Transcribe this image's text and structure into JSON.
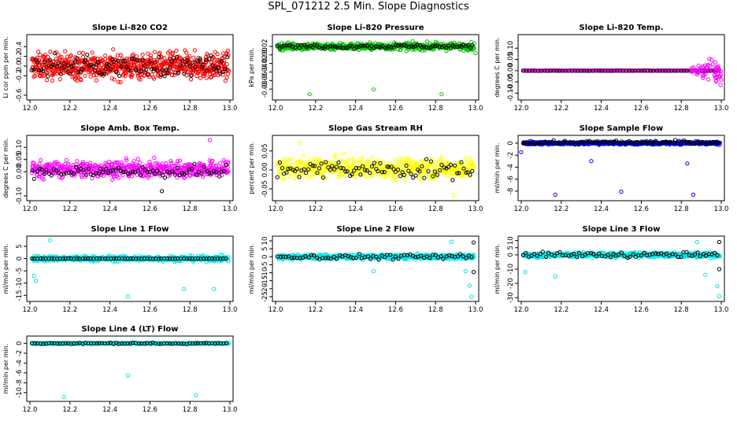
{
  "page": {
    "title": "SPL_071212  2.5 Min. Slope Diagnostics"
  },
  "chart_data": [
    {
      "type": "scatter",
      "title": "Slope Li-820 CO2",
      "ylabel": "Li cor ppm per min.",
      "xlim": [
        12.0,
        13.0
      ],
      "ylim": [
        -0.65,
        0.6
      ],
      "xticks": [
        "12.0",
        "12.2",
        "12.4",
        "12.6",
        "12.8",
        "13.0"
      ],
      "yticks": [
        {
          "v": -0.6,
          "l": "-0.6"
        },
        {
          "v": -0.2,
          "l": "-0.2"
        },
        {
          "v": 0.0,
          "l": "0.0"
        },
        {
          "v": 0.2,
          "l": "0.2"
        },
        {
          "v": 0.4,
          "l": "0.4"
        }
      ],
      "series": [
        {
          "name": "primary",
          "color": "#ff0000",
          "n": 700,
          "center": 0.0,
          "spread": 0.22,
          "outliers": []
        },
        {
          "name": "reference",
          "color": "#000000",
          "n": 110,
          "center": 0.0,
          "spread": 0.18,
          "outliers": []
        }
      ]
    },
    {
      "type": "scatter",
      "title": "Slope Li-820 Pressure",
      "ylabel": "kPa per min.",
      "xlim": [
        12.0,
        13.0
      ],
      "ylim": [
        -0.1,
        0.042
      ],
      "xticks": [
        "12.0",
        "12.2",
        "12.4",
        "12.6",
        "12.8",
        "13.0"
      ],
      "yticks": [
        {
          "v": -0.08,
          "l": "-0.08"
        },
        {
          "v": -0.06,
          "l": "-0.06"
        },
        {
          "v": -0.04,
          "l": "-0.04"
        },
        {
          "v": -0.02,
          "l": "-0.02"
        },
        {
          "v": 0.0,
          "l": "0.00"
        },
        {
          "v": 0.02,
          "l": "0.02"
        }
      ],
      "series": [
        {
          "name": "primary",
          "color": "#00c000",
          "n": 520,
          "center": 0.02,
          "spread": 0.007,
          "outliers": [
            {
              "x": 12.17,
              "y": -0.092
            },
            {
              "x": 12.49,
              "y": -0.081
            },
            {
              "x": 12.83,
              "y": -0.092
            },
            {
              "x": 13.0,
              "y": 0.004
            }
          ]
        },
        {
          "name": "reference",
          "color": "#000000",
          "n": 90,
          "center": 0.02,
          "spread": 0.004,
          "outliers": []
        }
      ]
    },
    {
      "type": "scatter",
      "title": "Slope Li-820 Temp.",
      "ylabel": "degrees C per min.",
      "xlim": [
        12.0,
        13.0
      ],
      "ylim": [
        -0.12,
        0.15
      ],
      "xticks": [
        "12.0",
        "12.2",
        "12.4",
        "12.6",
        "12.8",
        "13.0"
      ],
      "yticks": [
        {
          "v": -0.1,
          "l": "-0.10"
        },
        {
          "v": -0.05,
          "l": "-0.05"
        },
        {
          "v": 0.0,
          "l": "0.00"
        },
        {
          "v": 0.05,
          "l": "0.05"
        },
        {
          "v": 0.1,
          "l": "0.10"
        }
      ],
      "series": [
        {
          "name": "primary",
          "color": "#ff00ff",
          "n": 260,
          "center": 0.0,
          "spread": 0.0005,
          "outliers": []
        },
        {
          "name": "reference",
          "color": "#000000",
          "n": 65,
          "center": 0.0,
          "spread": 0.0005,
          "outliers": []
        }
      ],
      "tail": {
        "from": 12.85,
        "spread": 0.05,
        "color": "#ff00ff",
        "n": 60
      }
    },
    {
      "type": "scatter",
      "title": "Slope Amb. Box Temp.",
      "ylabel": "degrees C per min.",
      "xlim": [
        12.0,
        13.0
      ],
      "ylim": [
        -0.11,
        0.14
      ],
      "xticks": [
        "12.0",
        "12.2",
        "12.4",
        "12.6",
        "12.8",
        "13.0"
      ],
      "yticks": [
        {
          "v": -0.1,
          "l": "-0.10"
        },
        {
          "v": 0.0,
          "l": "0.00"
        },
        {
          "v": 0.05,
          "l": "0.05"
        },
        {
          "v": 0.1,
          "l": "0.10"
        }
      ],
      "series": [
        {
          "name": "primary",
          "color": "#ff00ff",
          "n": 560,
          "center": 0.01,
          "spread": 0.028,
          "outliers": [
            {
              "x": 12.9,
              "y": 0.13
            }
          ]
        },
        {
          "name": "reference",
          "color": "#000000",
          "n": 80,
          "center": 0.0,
          "spread": 0.022,
          "outliers": [
            {
              "x": 12.66,
              "y": -0.08
            }
          ]
        }
      ]
    },
    {
      "type": "scatter",
      "title": "Slope Gas Stream RH",
      "ylabel": "percent per min.",
      "xlim": [
        12.0,
        13.0
      ],
      "ylim": [
        -0.075,
        0.085
      ],
      "xticks": [
        "12.0",
        "12.2",
        "12.4",
        "12.6",
        "12.8",
        "13.0"
      ],
      "yticks": [
        {
          "v": -0.05,
          "l": "-0.05"
        },
        {
          "v": 0.0,
          "l": "0.00"
        },
        {
          "v": 0.05,
          "l": "0.05"
        }
      ],
      "series": [
        {
          "name": "primary",
          "color": "#ffff00",
          "n": 520,
          "center": 0.005,
          "spread": 0.022,
          "outliers": [
            {
              "x": 12.12,
              "y": 0.072
            },
            {
              "x": 12.89,
              "y": -0.068
            }
          ]
        },
        {
          "name": "reference",
          "color": "#000000",
          "n": 90,
          "center": 0.0,
          "spread": 0.02,
          "outliers": []
        }
      ]
    },
    {
      "type": "scatter",
      "title": "Slope Sample Flow",
      "ylabel": "ml/min per min.",
      "xlim": [
        12.0,
        13.0
      ],
      "ylim": [
        -9.2,
        0.9
      ],
      "xticks": [
        "12.0",
        "12.2",
        "12.4",
        "12.6",
        "12.8",
        "13.0"
      ],
      "yticks": [
        {
          "v": -8,
          "l": "-8"
        },
        {
          "v": -6,
          "l": "-6"
        },
        {
          "v": -4,
          "l": "-4"
        },
        {
          "v": -2,
          "l": "-2"
        },
        {
          "v": 0,
          "l": "0"
        }
      ],
      "series": [
        {
          "name": "primary",
          "color": "#0000ff",
          "n": 600,
          "center": 0.0,
          "spread": 0.18,
          "outliers": [
            {
              "x": 12.0,
              "y": -1.5
            },
            {
              "x": 12.17,
              "y": -8.6
            },
            {
              "x": 12.35,
              "y": -3.0
            },
            {
              "x": 12.5,
              "y": -8.1
            },
            {
              "x": 12.83,
              "y": -3.4
            },
            {
              "x": 12.86,
              "y": -8.6
            }
          ]
        },
        {
          "name": "reference",
          "color": "#000000",
          "n": 110,
          "center": 0.1,
          "spread": 0.3,
          "outliers": []
        }
      ]
    },
    {
      "type": "scatter",
      "title": "Slope Line 1 Flow",
      "ylabel": "ml/min per min.",
      "xlim": [
        12.0,
        13.0
      ],
      "ylim": [
        -16.5,
        8.2
      ],
      "xticks": [
        "12.0",
        "12.2",
        "12.4",
        "12.6",
        "12.8",
        "13.0"
      ],
      "yticks": [
        {
          "v": -15,
          "l": "-15"
        },
        {
          "v": -10,
          "l": "-10"
        },
        {
          "v": -5,
          "l": "-5"
        },
        {
          "v": 0,
          "l": "0"
        },
        {
          "v": 5,
          "l": "5"
        }
      ],
      "series": [
        {
          "name": "primary",
          "color": "#00e5e5",
          "n": 500,
          "center": 0.0,
          "spread": 0.9,
          "outliers": [
            {
              "x": 12.02,
              "y": -7.0
            },
            {
              "x": 12.03,
              "y": -9.0
            },
            {
              "x": 12.1,
              "y": 7.5
            },
            {
              "x": 12.49,
              "y": -15.5
            },
            {
              "x": 12.77,
              "y": -12.4
            },
            {
              "x": 12.92,
              "y": -12.4
            }
          ]
        },
        {
          "name": "reference",
          "color": "#000000",
          "n": 70,
          "center": 0.0,
          "spread": 0.05,
          "outliers": []
        }
      ]
    },
    {
      "type": "scatter",
      "title": "Slope Line 2 Flow",
      "ylabel": "ml/min per min.",
      "xlim": [
        12.0,
        13.0
      ],
      "ylim": [
        -26.5,
        11.5
      ],
      "xticks": [
        "12.0",
        "12.2",
        "12.4",
        "12.6",
        "12.8",
        "13.0"
      ],
      "yticks": [
        {
          "v": -25,
          "l": "-25"
        },
        {
          "v": -20,
          "l": "-20"
        },
        {
          "v": -15,
          "l": "-15"
        },
        {
          "v": -10,
          "l": "-10"
        },
        {
          "v": -5,
          "l": "-5"
        },
        {
          "v": 0,
          "l": "0"
        },
        {
          "v": 5,
          "l": "5"
        },
        {
          "v": 10,
          "l": "10"
        }
      ],
      "series": [
        {
          "name": "primary",
          "color": "#00e5e5",
          "n": 500,
          "center": 0.0,
          "spread": 1.3,
          "outliers": [
            {
              "x": 12.49,
              "y": -9.0
            },
            {
              "x": 12.88,
              "y": 9.5
            },
            {
              "x": 12.97,
              "y": -18.0
            },
            {
              "x": 12.98,
              "y": -25.0
            },
            {
              "x": 12.95,
              "y": -9.0
            }
          ]
        },
        {
          "name": "reference",
          "color": "#000000",
          "n": 70,
          "center": 0.0,
          "spread": 1.4,
          "outliers": [
            {
              "x": 12.99,
              "y": 9.0
            },
            {
              "x": 12.99,
              "y": -9.5
            }
          ]
        }
      ]
    },
    {
      "type": "scatter",
      "title": "Slope Line 3 Flow",
      "ylabel": "ml/min per min.",
      "xlim": [
        12.0,
        13.0
      ],
      "ylim": [
        -31,
        11.5
      ],
      "xticks": [
        "12.0",
        "12.2",
        "12.4",
        "12.6",
        "12.8",
        "13.0"
      ],
      "yticks": [
        {
          "v": -30,
          "l": "-30"
        },
        {
          "v": -20,
          "l": "-20"
        },
        {
          "v": -10,
          "l": "-10"
        },
        {
          "v": 0,
          "l": "0"
        },
        {
          "v": 5,
          "l": "5"
        },
        {
          "v": 10,
          "l": "10"
        }
      ],
      "series": [
        {
          "name": "primary",
          "color": "#00e5e5",
          "n": 500,
          "center": 0.0,
          "spread": 1.5,
          "outliers": [
            {
              "x": 12.02,
              "y": -12.0
            },
            {
              "x": 12.17,
              "y": -15.0
            },
            {
              "x": 12.88,
              "y": 9.0
            },
            {
              "x": 12.92,
              "y": -14.0
            },
            {
              "x": 12.98,
              "y": -22.0
            },
            {
              "x": 12.99,
              "y": -29.0
            }
          ]
        },
        {
          "name": "reference",
          "color": "#000000",
          "n": 70,
          "center": 0.0,
          "spread": 1.6,
          "outliers": [
            {
              "x": 12.99,
              "y": 9.0
            },
            {
              "x": 12.99,
              "y": -10.0
            }
          ]
        }
      ]
    },
    {
      "type": "scatter",
      "title": "Slope Line 4 (LT) Flow",
      "ylabel": "ml/min per min.",
      "xlim": [
        12.0,
        13.0
      ],
      "ylim": [
        -11.3,
        1.0
      ],
      "xticks": [
        "12.0",
        "12.2",
        "12.4",
        "12.6",
        "12.8",
        "13.0"
      ],
      "yticks": [
        {
          "v": -10,
          "l": "-10"
        },
        {
          "v": -8,
          "l": "-8"
        },
        {
          "v": -6,
          "l": "-6"
        },
        {
          "v": -4,
          "l": "-4"
        },
        {
          "v": -2,
          "l": "-2"
        },
        {
          "v": 0,
          "l": "0"
        }
      ],
      "series": [
        {
          "name": "primary",
          "color": "#00e5e5",
          "n": 500,
          "center": 0.0,
          "spread": 0.12,
          "outliers": [
            {
              "x": 12.17,
              "y": -10.9
            },
            {
              "x": 12.49,
              "y": -6.5
            },
            {
              "x": 12.83,
              "y": -10.5
            }
          ]
        },
        {
          "name": "reference",
          "color": "#000000",
          "n": 70,
          "center": 0.0,
          "spread": 0.12,
          "outliers": []
        }
      ]
    }
  ]
}
